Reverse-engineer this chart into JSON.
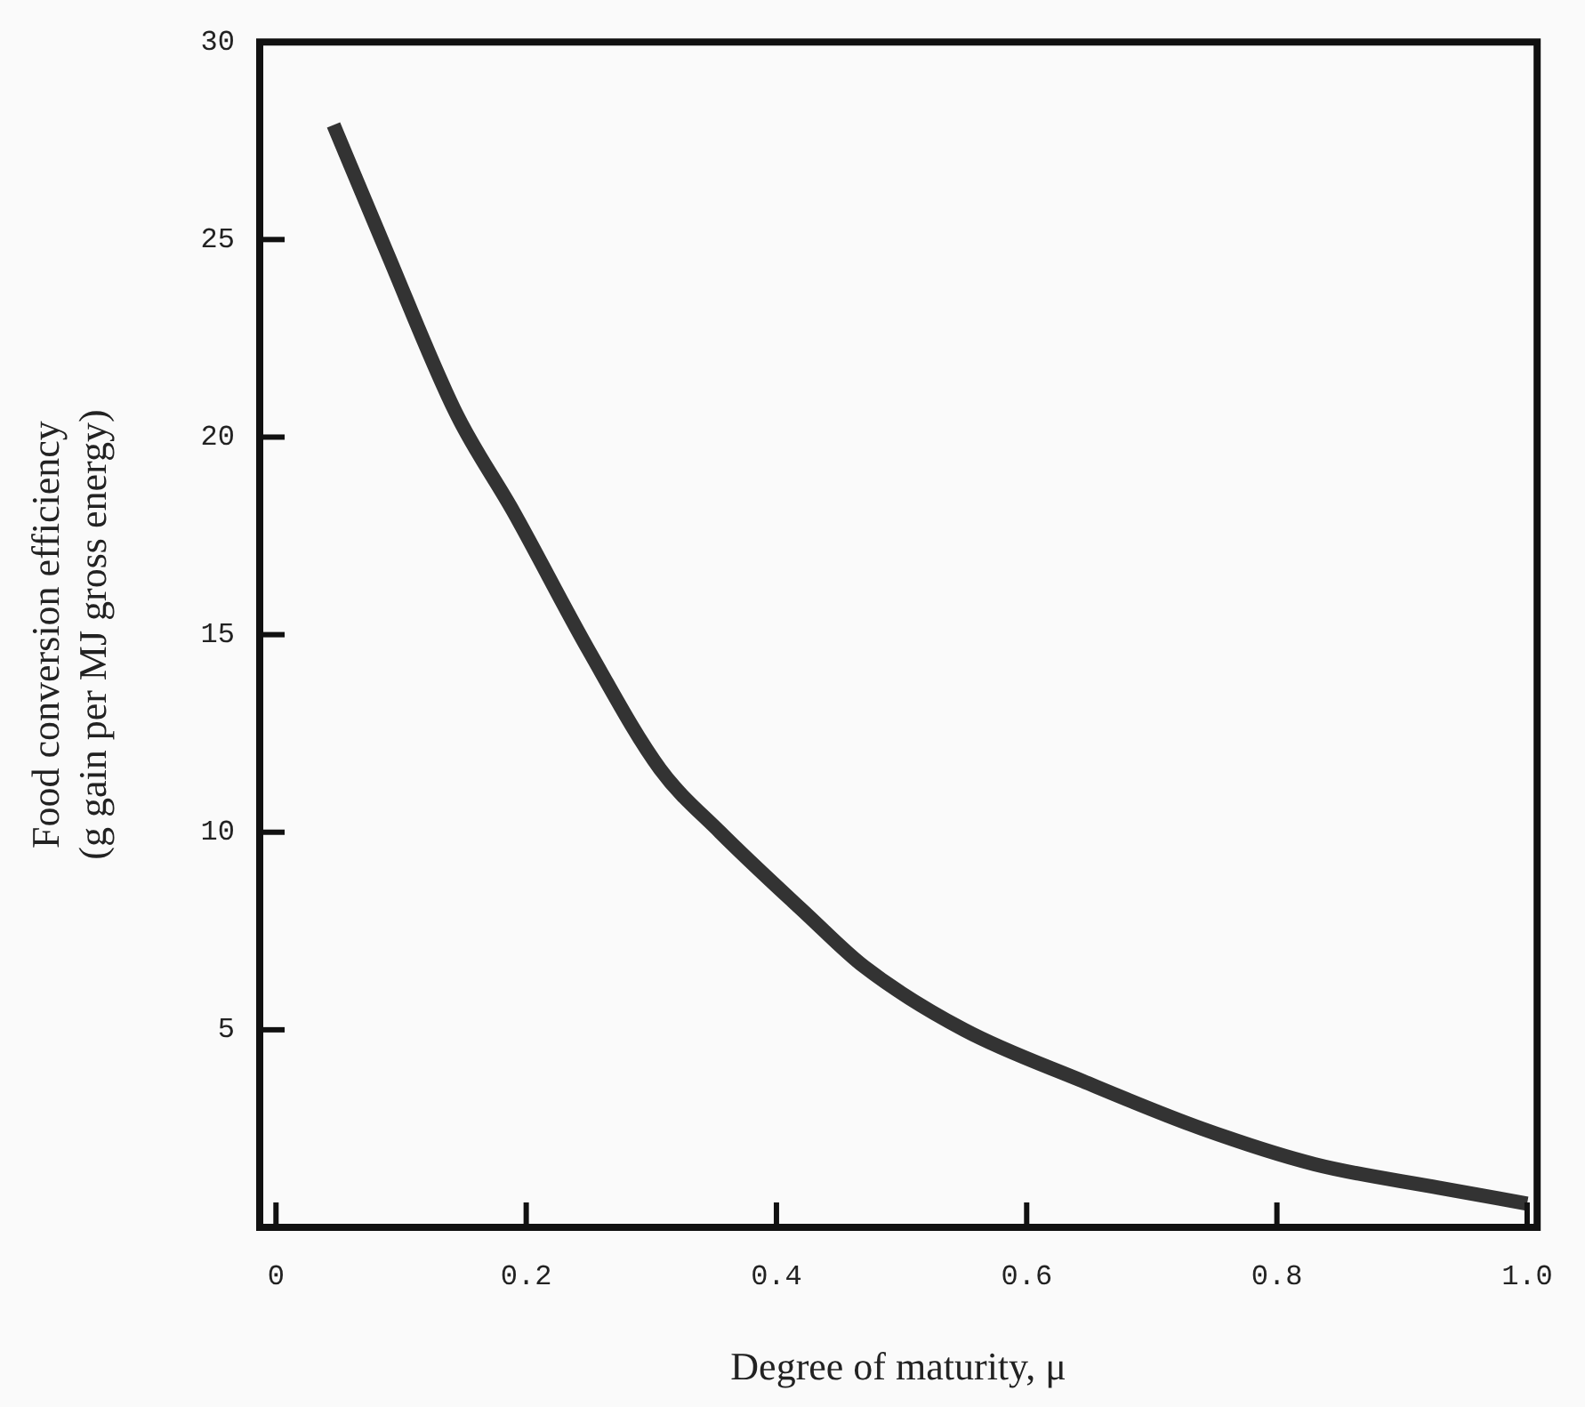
{
  "chart_data": {
    "type": "line",
    "xlabel": "Degree of maturity, μ",
    "ylabel": "Food conversion efficiency\n(g gain per MJ gross energy)",
    "x": [
      0.046,
      0.087,
      0.144,
      0.19,
      0.25,
      0.307,
      0.355,
      0.425,
      0.47,
      0.55,
      0.645,
      0.74,
      0.83,
      0.93,
      1.0
    ],
    "series": [
      {
        "color": "#333333",
        "values": [
          27.9,
          24.8,
          20.6,
          18.1,
          14.6,
          11.6,
          10.0,
          7.9,
          6.6,
          5.0,
          3.7,
          2.5,
          1.6,
          1.0,
          0.6
        ]
      }
    ],
    "xlim": [
      -0.013,
      1.008
    ],
    "ylim": [
      0,
      30
    ],
    "xticks": [
      0,
      0.2,
      0.4,
      0.6,
      0.8,
      {
        "value": 1,
        "label": "1.0"
      }
    ],
    "yticks": [
      5,
      10,
      15,
      20,
      25,
      30
    ],
    "grid": false,
    "legend": false,
    "marker": "none",
    "line_style": "solid"
  }
}
